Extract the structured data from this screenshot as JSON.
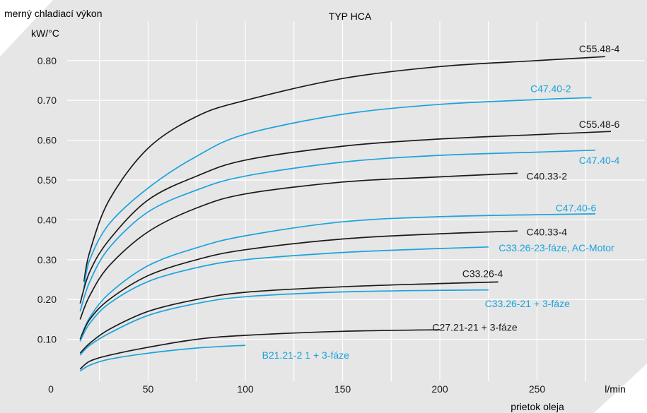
{
  "chart_data": {
    "type": "line",
    "title": "TYP HCA",
    "ylabel": "merný chladiací výkon",
    "yunit": "kW/°C",
    "xlabel": "prietok oleja",
    "xunit": "l/min",
    "xlim": [
      0,
      300
    ],
    "ylim": [
      0,
      0.9
    ],
    "xticks": [
      "0",
      "50",
      "100",
      "150",
      "200",
      "250"
    ],
    "yticks": [
      "0.10",
      "0.20",
      "0.30",
      "0.40",
      "0.50",
      "0.60",
      "0.70",
      "0.80"
    ],
    "grid": true,
    "colors": {
      "black": "#1a1a1a",
      "blue": "#1aa3dc",
      "background": "#e6e6e6",
      "grid": "#ffffff"
    },
    "series": [
      {
        "name": "C55.48-4",
        "color": "black",
        "x": [
          17,
          20,
          30,
          50,
          75,
          100,
          150,
          200,
          250,
          285
        ],
        "y": [
          0.245,
          0.32,
          0.45,
          0.58,
          0.66,
          0.7,
          0.755,
          0.785,
          0.8,
          0.81
        ]
      },
      {
        "name": "C47.40-2",
        "color": "blue",
        "x": [
          17,
          20,
          30,
          50,
          75,
          100,
          150,
          200,
          250,
          278
        ],
        "y": [
          0.23,
          0.3,
          0.39,
          0.48,
          0.56,
          0.615,
          0.665,
          0.69,
          0.702,
          0.707
        ]
      },
      {
        "name": "C55.48-6",
        "color": "black",
        "x": [
          15,
          20,
          30,
          50,
          75,
          100,
          150,
          200,
          250,
          288
        ],
        "y": [
          0.19,
          0.27,
          0.35,
          0.45,
          0.51,
          0.55,
          0.585,
          0.603,
          0.614,
          0.622
        ]
      },
      {
        "name": "C47.40-4",
        "color": "blue",
        "x": [
          15,
          20,
          30,
          50,
          75,
          100,
          150,
          200,
          250,
          280
        ],
        "y": [
          0.17,
          0.245,
          0.33,
          0.42,
          0.475,
          0.51,
          0.545,
          0.562,
          0.57,
          0.575
        ]
      },
      {
        "name": "C40.33-2",
        "color": "black",
        "x": [
          15,
          20,
          30,
          50,
          75,
          100,
          150,
          200,
          240
        ],
        "y": [
          0.15,
          0.21,
          0.285,
          0.37,
          0.43,
          0.465,
          0.495,
          0.508,
          0.517
        ]
      },
      {
        "name": "C47.40-6",
        "color": "blue",
        "x": [
          15,
          20,
          30,
          50,
          75,
          100,
          150,
          200,
          250,
          280
        ],
        "y": [
          0.1,
          0.155,
          0.215,
          0.285,
          0.33,
          0.36,
          0.395,
          0.408,
          0.413,
          0.415
        ]
      },
      {
        "name": "C40.33-4",
        "color": "black",
        "x": [
          15,
          20,
          30,
          50,
          75,
          100,
          150,
          200,
          240
        ],
        "y": [
          0.1,
          0.15,
          0.2,
          0.26,
          0.3,
          0.325,
          0.352,
          0.365,
          0.372
        ]
      },
      {
        "name": "C33.26-23-fáze, AC-Motor",
        "color": "blue",
        "x": [
          15,
          20,
          30,
          50,
          75,
          100,
          150,
          200,
          225
        ],
        "y": [
          0.095,
          0.14,
          0.19,
          0.245,
          0.28,
          0.3,
          0.318,
          0.328,
          0.332
        ]
      },
      {
        "name": "C33.26-4",
        "color": "black",
        "x": [
          15,
          20,
          30,
          50,
          75,
          100,
          150,
          200,
          230
        ],
        "y": [
          0.065,
          0.09,
          0.125,
          0.17,
          0.2,
          0.218,
          0.232,
          0.24,
          0.244
        ]
      },
      {
        "name": "C33.26-21 + 3-fáze",
        "color": "blue",
        "x": [
          15,
          20,
          30,
          50,
          75,
          100,
          150,
          200,
          225
        ],
        "y": [
          0.06,
          0.085,
          0.115,
          0.16,
          0.19,
          0.207,
          0.219,
          0.223,
          0.224
        ]
      },
      {
        "name": "C27.21-21 + 3-fáze",
        "color": "black",
        "x": [
          15,
          20,
          30,
          50,
          75,
          100,
          150,
          200
        ],
        "y": [
          0.025,
          0.045,
          0.06,
          0.08,
          0.1,
          0.11,
          0.12,
          0.124
        ]
      },
      {
        "name": "B21.21-2 1 + 3-fáze",
        "color": "blue",
        "x": [
          15,
          20,
          30,
          50,
          75,
          100
        ],
        "y": [
          0.02,
          0.035,
          0.05,
          0.065,
          0.078,
          0.085
        ]
      }
    ],
    "labels": [
      {
        "text": "C55.48-4",
        "color": "black",
        "x": 282,
        "y": 0.83
      },
      {
        "text": "C47.40-2",
        "color": "blue",
        "x": 257,
        "y": 0.73
      },
      {
        "text": "C55.48-6",
        "color": "black",
        "x": 282,
        "y": 0.64
      },
      {
        "text": "C47.40-4",
        "color": "blue",
        "x": 282,
        "y": 0.55
      },
      {
        "text": "C40.33-2",
        "color": "black",
        "x": 255,
        "y": 0.51
      },
      {
        "text": "C47.40-6",
        "color": "blue",
        "x": 270,
        "y": 0.43
      },
      {
        "text": "C40.33-4",
        "color": "black",
        "x": 255,
        "y": 0.37
      },
      {
        "text": "C33.26-23-fáze, AC-Motor",
        "color": "blue",
        "x": 260,
        "y": 0.33
      },
      {
        "text": "C33.26-4",
        "color": "black",
        "x": 222,
        "y": 0.265
      },
      {
        "text": "C33.26-21 + 3-fáze",
        "color": "blue",
        "x": 245,
        "y": 0.19
      },
      {
        "text": "C27.21-21 + 3-fáze",
        "color": "black",
        "x": 218,
        "y": 0.13
      },
      {
        "text": "B21.21-2 1 + 3-fáze",
        "color": "blue",
        "x": 131,
        "y": 0.06
      }
    ]
  }
}
